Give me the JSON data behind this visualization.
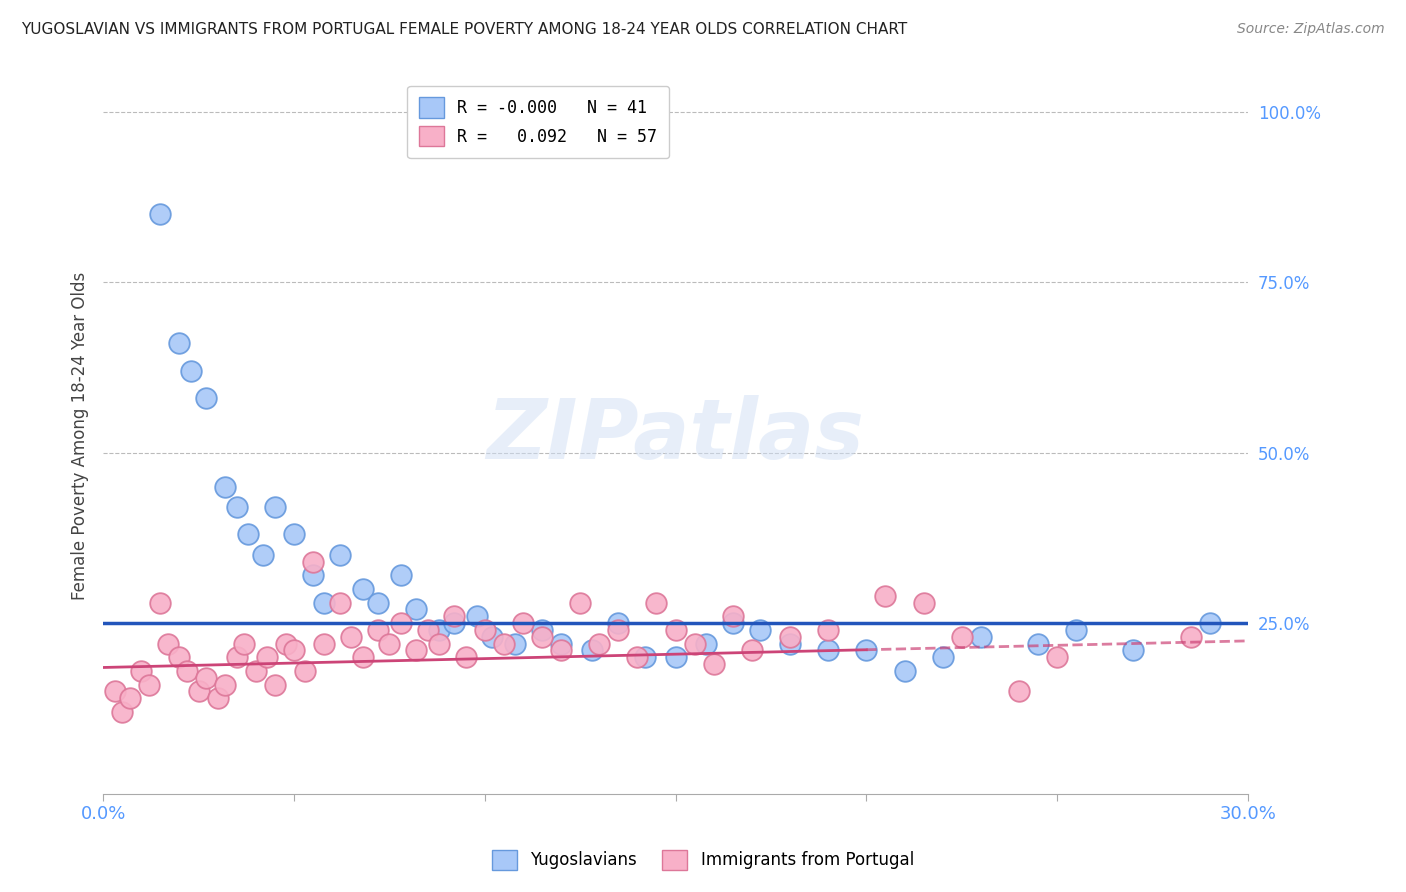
{
  "title": "YUGOSLAVIAN VS IMMIGRANTS FROM PORTUGAL FEMALE POVERTY AMONG 18-24 YEAR OLDS CORRELATION CHART",
  "source": "Source: ZipAtlas.com",
  "ylabel": "Female Poverty Among 18-24 Year Olds",
  "xlim": [
    0.0,
    30.0
  ],
  "ylim": [
    0.0,
    105.0
  ],
  "series1_label": "Yugoslavians",
  "series2_label": "Immigrants from Portugal",
  "series1_color": "#a8c8f8",
  "series2_color": "#f8b0c8",
  "series1_edge": "#6699dd",
  "series2_edge": "#dd7799",
  "regression1_color": "#2255bb",
  "regression2_color": "#cc4477",
  "regression1_y": 25.0,
  "regression2_slope": 0.13,
  "regression2_intercept": 18.5,
  "watermark_text": "ZIPatlas",
  "title_color": "#222222",
  "axis_label_color": "#5599ff",
  "grid_color": "#bbbbbb",
  "background_color": "#ffffff",
  "series1_x": [
    1.5,
    2.0,
    2.3,
    2.7,
    3.2,
    3.5,
    3.8,
    4.2,
    4.5,
    5.0,
    5.5,
    5.8,
    6.2,
    6.8,
    7.2,
    7.8,
    8.2,
    8.8,
    9.2,
    9.8,
    10.2,
    10.8,
    11.5,
    12.0,
    12.8,
    13.5,
    14.2,
    15.0,
    15.8,
    16.5,
    17.2,
    18.0,
    19.0,
    20.0,
    21.0,
    22.0,
    23.0,
    24.5,
    25.5,
    27.0,
    29.0
  ],
  "series1_y": [
    85,
    66,
    62,
    58,
    45,
    42,
    38,
    35,
    42,
    38,
    32,
    28,
    35,
    30,
    28,
    32,
    27,
    24,
    25,
    26,
    23,
    22,
    24,
    22,
    21,
    25,
    20,
    20,
    22,
    25,
    24,
    22,
    21,
    21,
    18,
    20,
    23,
    22,
    24,
    21,
    25
  ],
  "series2_x": [
    0.3,
    0.5,
    0.7,
    1.0,
    1.2,
    1.5,
    1.7,
    2.0,
    2.2,
    2.5,
    2.7,
    3.0,
    3.2,
    3.5,
    3.7,
    4.0,
    4.3,
    4.5,
    4.8,
    5.0,
    5.3,
    5.5,
    5.8,
    6.2,
    6.5,
    6.8,
    7.2,
    7.5,
    7.8,
    8.2,
    8.5,
    8.8,
    9.2,
    9.5,
    10.0,
    10.5,
    11.0,
    11.5,
    12.0,
    12.5,
    13.0,
    13.5,
    14.0,
    14.5,
    15.0,
    15.5,
    16.0,
    16.5,
    17.0,
    18.0,
    19.0,
    20.5,
    21.5,
    22.5,
    24.0,
    25.0,
    28.5
  ],
  "series2_y": [
    15,
    12,
    14,
    18,
    16,
    28,
    22,
    20,
    18,
    15,
    17,
    14,
    16,
    20,
    22,
    18,
    20,
    16,
    22,
    21,
    18,
    34,
    22,
    28,
    23,
    20,
    24,
    22,
    25,
    21,
    24,
    22,
    26,
    20,
    24,
    22,
    25,
    23,
    21,
    28,
    22,
    24,
    20,
    28,
    24,
    22,
    19,
    26,
    21,
    23,
    24,
    29,
    28,
    23,
    15,
    20,
    23
  ]
}
